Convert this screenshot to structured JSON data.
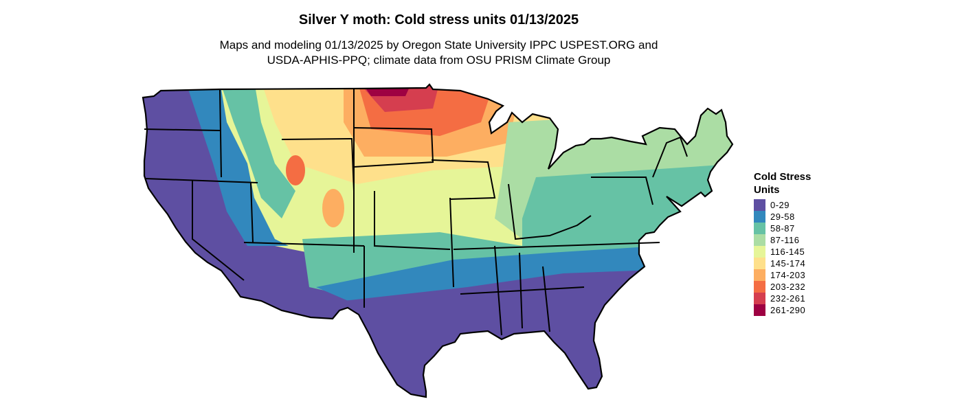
{
  "title": "Silver Y moth: Cold stress units 01/13/2025",
  "subtitle_lines": [
    "Maps and modeling 01/13/2025 by Oregon State University IPPC USPEST.ORG and",
    "USDA-APHIS-PPQ; climate data from OSU PRISM Climate Group"
  ],
  "legend": {
    "title_lines": [
      "Cold Stress",
      "Units"
    ],
    "items": [
      {
        "label": "0-29",
        "color": "#5e4fa2"
      },
      {
        "label": "29-58",
        "color": "#3288bd"
      },
      {
        "label": "58-87",
        "color": "#66c2a5"
      },
      {
        "label": "87-116",
        "color": "#abdda4"
      },
      {
        "label": "116-145",
        "color": "#e6f598"
      },
      {
        "label": "145-174",
        "color": "#fee08b"
      },
      {
        "label": "174-203",
        "color": "#fdae61"
      },
      {
        "label": "203-232",
        "color": "#f46d43"
      },
      {
        "label": "232-261",
        "color": "#d53e4f"
      },
      {
        "label": "261-290",
        "color": "#9e0142"
      }
    ]
  },
  "map": {
    "type": "choropleth",
    "region": "contiguous-united-states",
    "color_scale": [
      "#5e4fa2",
      "#3288bd",
      "#66c2a5",
      "#abdda4",
      "#e6f598",
      "#fee08b",
      "#fdae61",
      "#f46d43",
      "#d53e4f",
      "#9e0142"
    ]
  }
}
